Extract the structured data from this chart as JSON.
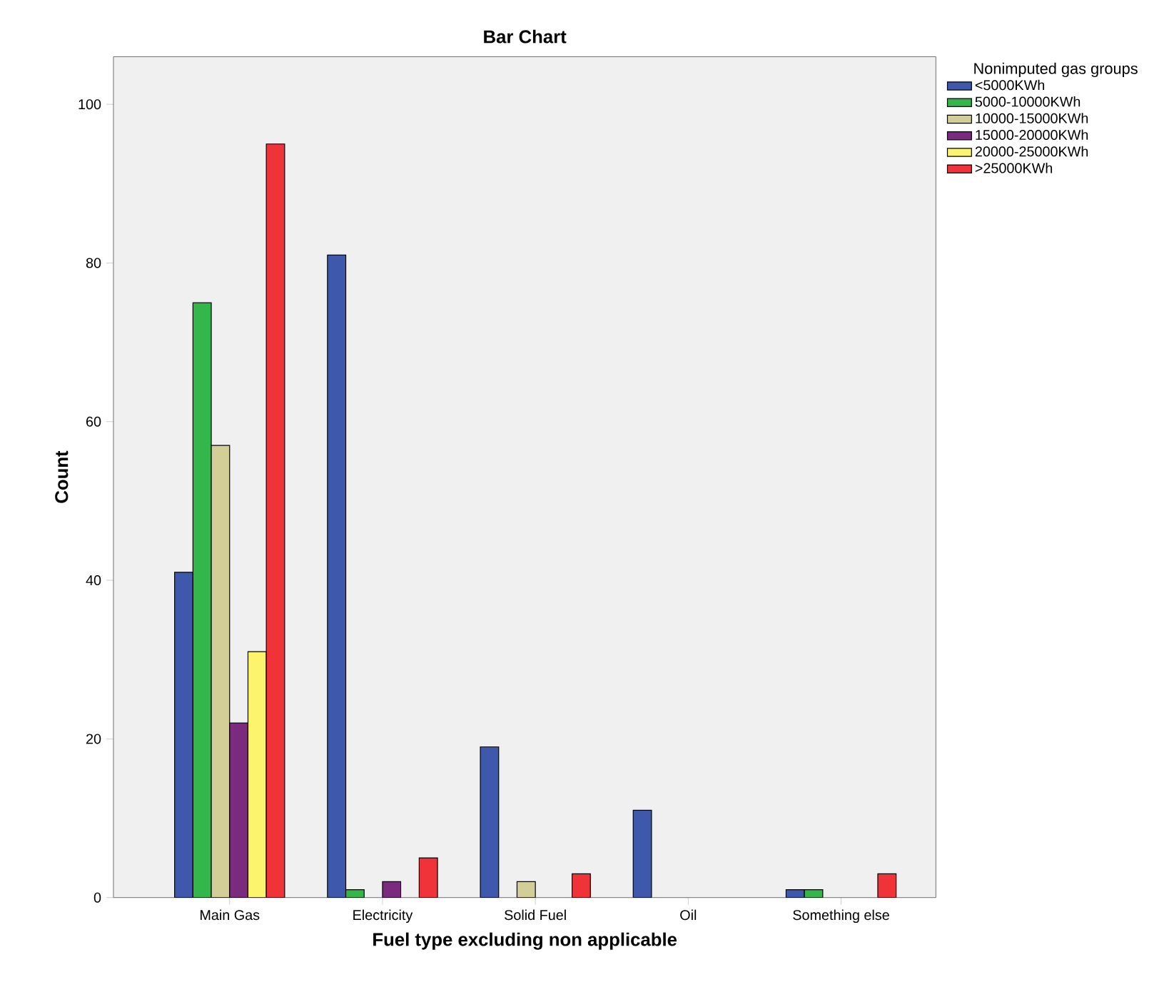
{
  "chart_data": {
    "type": "bar",
    "title": "Bar Chart",
    "xlabel": "Fuel type excluding non applicable",
    "ylabel": "Count",
    "legend_title": "Nonimputed gas groups",
    "categories": [
      "Main Gas",
      "Electricity",
      "Solid Fuel",
      "Oil",
      "Something else"
    ],
    "series": [
      {
        "name": "<5000KWh",
        "color": "#3e58ac",
        "values": [
          41,
          81,
          19,
          11,
          1
        ]
      },
      {
        "name": "5000-10000KWh",
        "color": "#33b74a",
        "values": [
          75,
          1,
          null,
          null,
          1
        ]
      },
      {
        "name": "10000-15000KWh",
        "color": "#d3ce97",
        "values": [
          57,
          null,
          2,
          null,
          null
        ]
      },
      {
        "name": "15000-20000KWh",
        "color": "#7b2b7e",
        "values": [
          22,
          2,
          null,
          null,
          null
        ]
      },
      {
        "name": "20000-25000KWh",
        "color": "#fcf46c",
        "values": [
          31,
          null,
          null,
          null,
          null
        ]
      },
      {
        "name": ">25000KWh",
        "color": "#ef3338",
        "values": [
          95,
          5,
          3,
          null,
          3
        ]
      }
    ],
    "ylim": [
      0,
      106
    ],
    "yticks": [
      0,
      20,
      40,
      60,
      80,
      100
    ],
    "legend": "right"
  }
}
